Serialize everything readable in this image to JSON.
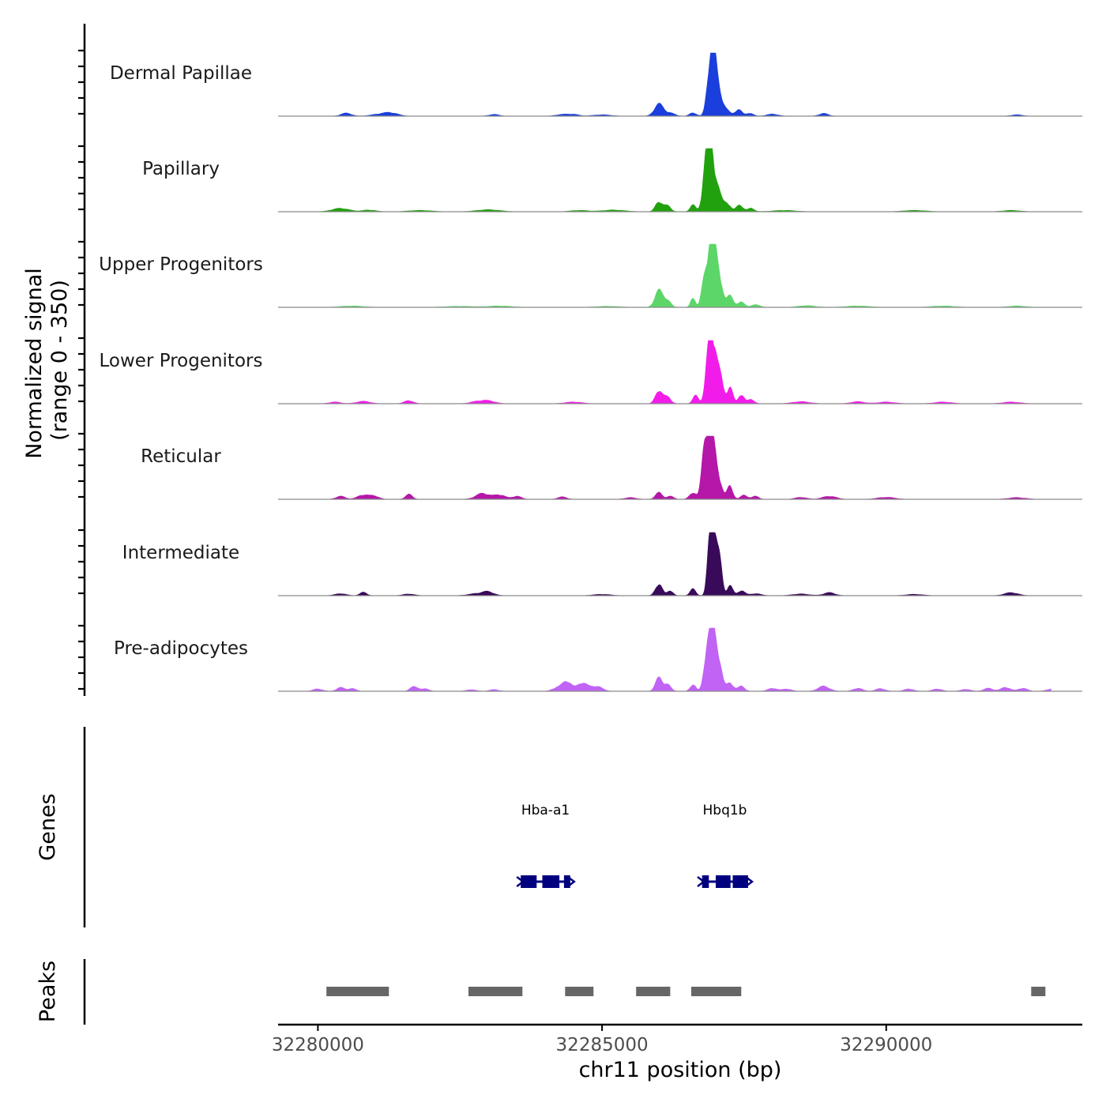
{
  "chart_data": {
    "type": "area",
    "title": "",
    "xlabel": "chr11 position (bp)",
    "ylabel_line1": "Normalized signal",
    "ylabel_line2": "(range 0 - 350)",
    "ylim": [
      0,
      350
    ],
    "xlim": [
      32279300,
      32293450
    ],
    "x_ticks": [
      32280000,
      32285000,
      32290000
    ],
    "x_tick_labels": [
      "32280000",
      "32285000",
      "32290000"
    ],
    "genes_label": "Genes",
    "peaks_label": "Peaks",
    "tracks": [
      {
        "name": "Dermal Papillae",
        "color": "#1a3fdc",
        "peaks": [
          [
            32280500,
            18,
            90
          ],
          [
            32281100,
            12,
            150
          ],
          [
            32281300,
            16,
            120
          ],
          [
            32283100,
            10,
            90
          ],
          [
            32284300,
            10,
            110
          ],
          [
            32284500,
            10,
            90
          ],
          [
            32285000,
            8,
            150
          ],
          [
            32286000,
            72,
            80
          ],
          [
            32286200,
            18,
            80
          ],
          [
            32286600,
            20,
            60
          ],
          [
            32286900,
            300,
            55
          ],
          [
            32286980,
            250,
            50
          ],
          [
            32287070,
            120,
            60
          ],
          [
            32287200,
            30,
            60
          ],
          [
            32287400,
            40,
            60
          ],
          [
            32287600,
            18,
            60
          ],
          [
            32288000,
            12,
            100
          ],
          [
            32288900,
            16,
            80
          ],
          [
            32292300,
            8,
            100
          ]
        ]
      },
      {
        "name": "Papillary",
        "color": "#21a10e",
        "peaks": [
          [
            32280400,
            20,
            150
          ],
          [
            32280900,
            10,
            120
          ],
          [
            32281800,
            8,
            200
          ],
          [
            32283000,
            12,
            200
          ],
          [
            32284600,
            8,
            150
          ],
          [
            32285200,
            10,
            200
          ],
          [
            32286000,
            60,
            60
          ],
          [
            32286150,
            35,
            60
          ],
          [
            32286600,
            40,
            50
          ],
          [
            32286830,
            310,
            55
          ],
          [
            32286920,
            290,
            50
          ],
          [
            32287020,
            150,
            70
          ],
          [
            32287200,
            50,
            60
          ],
          [
            32287420,
            40,
            60
          ],
          [
            32287620,
            20,
            60
          ],
          [
            32288200,
            8,
            200
          ],
          [
            32290500,
            8,
            200
          ],
          [
            32292200,
            8,
            150
          ]
        ]
      },
      {
        "name": "Upper Progenitors",
        "color": "#5cd668",
        "peaks": [
          [
            32280600,
            8,
            200
          ],
          [
            32282500,
            6,
            250
          ],
          [
            32283200,
            8,
            200
          ],
          [
            32285100,
            6,
            200
          ],
          [
            32286000,
            100,
            70
          ],
          [
            32286150,
            40,
            60
          ],
          [
            32286600,
            60,
            40
          ],
          [
            32286800,
            160,
            50
          ],
          [
            32286900,
            330,
            50
          ],
          [
            32286990,
            280,
            50
          ],
          [
            32287080,
            140,
            50
          ],
          [
            32287250,
            70,
            60
          ],
          [
            32287450,
            30,
            60
          ],
          [
            32287700,
            15,
            80
          ],
          [
            32288600,
            10,
            150
          ],
          [
            32289500,
            8,
            200
          ],
          [
            32291000,
            8,
            200
          ],
          [
            32292300,
            8,
            150
          ]
        ]
      },
      {
        "name": "Lower Progenitors",
        "color": "#f21cea",
        "peaks": [
          [
            32280300,
            10,
            100
          ],
          [
            32280800,
            14,
            120
          ],
          [
            32281600,
            18,
            80
          ],
          [
            32282800,
            12,
            120
          ],
          [
            32283000,
            16,
            120
          ],
          [
            32284500,
            10,
            150
          ],
          [
            32286000,
            80,
            60
          ],
          [
            32286150,
            40,
            60
          ],
          [
            32286650,
            50,
            50
          ],
          [
            32286880,
            310,
            55
          ],
          [
            32286970,
            290,
            55
          ],
          [
            32287080,
            150,
            55
          ],
          [
            32287250,
            100,
            50
          ],
          [
            32287450,
            55,
            50
          ],
          [
            32287620,
            25,
            60
          ],
          [
            32288500,
            12,
            150
          ],
          [
            32289500,
            12,
            120
          ],
          [
            32290000,
            10,
            150
          ],
          [
            32291000,
            10,
            150
          ],
          [
            32292200,
            10,
            150
          ]
        ]
      },
      {
        "name": "Reticular",
        "color": "#b517a8",
        "peaks": [
          [
            32280400,
            18,
            80
          ],
          [
            32280800,
            26,
            100
          ],
          [
            32281000,
            18,
            80
          ],
          [
            32281600,
            30,
            60
          ],
          [
            32282900,
            35,
            120
          ],
          [
            32283200,
            26,
            100
          ],
          [
            32283500,
            18,
            80
          ],
          [
            32284300,
            14,
            80
          ],
          [
            32285500,
            10,
            100
          ],
          [
            32286000,
            40,
            60
          ],
          [
            32286200,
            18,
            60
          ],
          [
            32286600,
            40,
            60
          ],
          [
            32286800,
            280,
            50
          ],
          [
            32286880,
            300,
            50
          ],
          [
            32286960,
            240,
            50
          ],
          [
            32287050,
            120,
            60
          ],
          [
            32287250,
            80,
            50
          ],
          [
            32287500,
            25,
            60
          ],
          [
            32287700,
            18,
            60
          ],
          [
            32288500,
            12,
            100
          ],
          [
            32289000,
            18,
            120
          ],
          [
            32290000,
            12,
            150
          ],
          [
            32292300,
            10,
            150
          ]
        ]
      },
      {
        "name": "Intermediate",
        "color": "#3a0a5a",
        "peaks": [
          [
            32280400,
            12,
            100
          ],
          [
            32280800,
            20,
            60
          ],
          [
            32281600,
            10,
            100
          ],
          [
            32282800,
            12,
            150
          ],
          [
            32283000,
            20,
            100
          ],
          [
            32285000,
            8,
            150
          ],
          [
            32286000,
            70,
            60
          ],
          [
            32286200,
            30,
            50
          ],
          [
            32286600,
            40,
            50
          ],
          [
            32286900,
            350,
            45
          ],
          [
            32286980,
            300,
            45
          ],
          [
            32287070,
            200,
            45
          ],
          [
            32287250,
            60,
            50
          ],
          [
            32287450,
            30,
            60
          ],
          [
            32287700,
            12,
            100
          ],
          [
            32288500,
            10,
            150
          ],
          [
            32289000,
            18,
            100
          ],
          [
            32290500,
            8,
            150
          ],
          [
            32292200,
            18,
            120
          ]
        ]
      },
      {
        "name": "Pre-adipocytes",
        "color": "#c163f5",
        "peaks": [
          [
            32280000,
            14,
            80
          ],
          [
            32280400,
            22,
            70
          ],
          [
            32280600,
            16,
            70
          ],
          [
            32281700,
            30,
            70
          ],
          [
            32281900,
            14,
            60
          ],
          [
            32282700,
            10,
            80
          ],
          [
            32283100,
            10,
            80
          ],
          [
            32284200,
            20,
            80
          ],
          [
            32284380,
            60,
            80
          ],
          [
            32284650,
            50,
            90
          ],
          [
            32284900,
            30,
            100
          ],
          [
            32286000,
            80,
            60
          ],
          [
            32286150,
            40,
            60
          ],
          [
            32286600,
            40,
            50
          ],
          [
            32286850,
            250,
            55
          ],
          [
            32286950,
            300,
            55
          ],
          [
            32287050,
            180,
            60
          ],
          [
            32287250,
            50,
            60
          ],
          [
            32287450,
            30,
            60
          ],
          [
            32288000,
            18,
            80
          ],
          [
            32288250,
            14,
            80
          ],
          [
            32288900,
            30,
            100
          ],
          [
            32289500,
            18,
            80
          ],
          [
            32289900,
            16,
            80
          ],
          [
            32290400,
            14,
            80
          ],
          [
            32290900,
            14,
            80
          ],
          [
            32291400,
            12,
            80
          ],
          [
            32291800,
            18,
            80
          ],
          [
            32292100,
            24,
            80
          ],
          [
            32292400,
            18,
            80
          ],
          [
            32292900,
            14,
            80
          ]
        ]
      }
    ],
    "genes": [
      {
        "name": "Hba-a1",
        "start": 32283570,
        "end": 32284440,
        "exons": [
          [
            32283570,
            32283850
          ],
          [
            32283950,
            32284250
          ],
          [
            32284330,
            32284440
          ]
        ]
      },
      {
        "name": "Hbq1b",
        "start": 32286750,
        "end": 32287570,
        "exons": [
          [
            32286760,
            32286880
          ],
          [
            32287000,
            32287260
          ],
          [
            32287300,
            32287570
          ]
        ]
      }
    ],
    "peak_regions": [
      [
        32280150,
        32281250
      ],
      [
        32282650,
        32283600
      ],
      [
        32284350,
        32284850
      ],
      [
        32285600,
        32286200
      ],
      [
        32286570,
        32287450
      ],
      [
        32292550,
        32292800
      ]
    ]
  }
}
